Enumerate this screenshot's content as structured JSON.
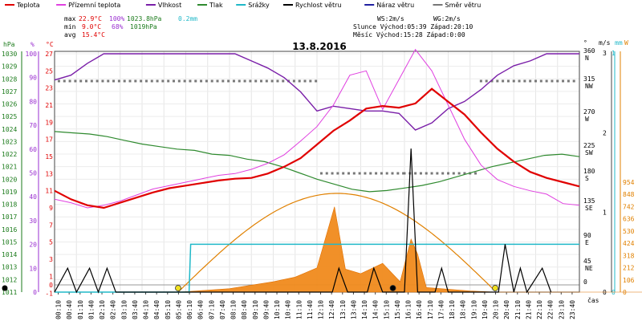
{
  "chart_data": {
    "type": "line",
    "title": "13.8.2016",
    "x_unit": "čas",
    "x_ticks": [
      "00:10",
      "00:40",
      "01:10",
      "01:40",
      "02:10",
      "02:40",
      "03:10",
      "03:40",
      "04:10",
      "04:40",
      "05:10",
      "05:40",
      "06:10",
      "06:40",
      "07:10",
      "07:40",
      "08:10",
      "08:40",
      "09:10",
      "09:40",
      "10:10",
      "10:40",
      "11:10",
      "11:40",
      "12:10",
      "12:40",
      "13:10",
      "13:40",
      "14:10",
      "14:40",
      "15:10",
      "15:40",
      "16:10",
      "16:40",
      "17:10",
      "17:40",
      "18:10",
      "18:40",
      "19:10",
      "19:40",
      "20:10",
      "20:40",
      "21:10",
      "21:40",
      "22:10",
      "22:40",
      "23:10",
      "23:40"
    ],
    "legend": [
      {
        "name": "Teplota",
        "color": "#e00000"
      },
      {
        "name": "Přízemní teplota",
        "color": "#e040e0"
      },
      {
        "name": "Vlhkost",
        "color": "#7a1fa8"
      },
      {
        "name": "Tlak",
        "color": "#2f8a2f"
      },
      {
        "name": "Srážky",
        "color": "#20b8c8"
      },
      {
        "name": "Rychlost větru",
        "color": "#000000"
      },
      {
        "name": "Náraz větru",
        "color": "#2020a0"
      },
      {
        "name": "Směr větru",
        "color": "#777777"
      }
    ],
    "stats": {
      "max_label": "max",
      "max_temp": "22.9°C",
      "max_hum": "100%",
      "max_press": "1023.8hPa",
      "max_rain": "0.2mm",
      "min_label": "min",
      "min_temp": "9.0°C",
      "min_hum": "68%",
      "min_press": "1019hPa",
      "avg_label": "avg",
      "avg_temp": "15.4°C",
      "ws": "WS:2m/s",
      "wg": "WG:2m/s",
      "sun": "Slunce Východ:05:39  Západ:20:10",
      "moon": "Měsíc  Východ:15:28  Západ:0:00"
    },
    "axes": {
      "hpa": {
        "unit": "hPa",
        "color": "#1a7a1a",
        "ticks": [
          1011,
          1012,
          1013,
          1014,
          1015,
          1016,
          1017,
          1018,
          1019,
          1020,
          1021,
          1022,
          1023,
          1024,
          1025,
          1026,
          1027,
          1028,
          1029,
          1030
        ]
      },
      "pct": {
        "unit": "%",
        "color": "#9a2fd0",
        "ticks": [
          0,
          10,
          20,
          30,
          40,
          50,
          60,
          70,
          80,
          90,
          100
        ]
      },
      "degc": {
        "unit": "°C",
        "color": "#e00000",
        "ticks": [
          -1,
          0,
          1,
          3,
          5,
          7,
          9,
          11,
          13,
          15,
          17,
          19,
          21,
          23,
          25,
          27
        ]
      },
      "dir": {
        "unit": "°",
        "ticks": [
          {
            "v": "360",
            "l": "N"
          },
          {
            "v": "315",
            "l": "NW"
          },
          {
            "v": "270",
            "l": "W"
          },
          {
            "v": "225",
            "l": "SW"
          },
          {
            "v": "180",
            "l": "S"
          },
          {
            "v": "135",
            "l": "SE"
          },
          {
            "v": "90",
            "l": "E"
          },
          {
            "v": "45",
            "l": "NE"
          },
          {
            "v": "0",
            "l": ""
          }
        ]
      },
      "ms": {
        "unit": "m/s",
        "ticks": [
          0,
          1,
          2,
          3
        ]
      },
      "mm": {
        "unit": "mm",
        "color": "#20b8c8",
        "ticks": [
          0,
          1
        ]
      },
      "wm2": {
        "unit": "W",
        "color": "#e08000",
        "ticks": [
          0,
          106,
          212,
          318,
          424,
          530,
          636,
          742,
          848,
          954
        ]
      }
    },
    "series": [
      {
        "name": "Teplota",
        "unit": "°C",
        "points": [
          [
            0,
            11
          ],
          [
            1,
            10
          ],
          [
            2,
            9.3
          ],
          [
            3,
            9
          ],
          [
            4,
            9.6
          ],
          [
            5,
            10.2
          ],
          [
            6,
            10.8
          ],
          [
            7,
            11.3
          ],
          [
            8,
            11.6
          ],
          [
            9,
            11.9
          ],
          [
            10,
            12.2
          ],
          [
            11,
            12.4
          ],
          [
            12,
            12.5
          ],
          [
            13,
            13
          ],
          [
            14,
            13.8
          ],
          [
            15,
            14.8
          ],
          [
            16,
            16.4
          ],
          [
            17,
            18
          ],
          [
            18,
            19.2
          ],
          [
            19,
            20.6
          ],
          [
            20,
            20.9
          ],
          [
            21,
            20.7
          ],
          [
            22,
            21.2
          ],
          [
            23,
            22.9
          ],
          [
            24,
            21.4
          ],
          [
            25,
            19.9
          ],
          [
            26,
            17.8
          ],
          [
            27,
            15.9
          ],
          [
            28,
            14.4
          ],
          [
            29,
            13.2
          ],
          [
            30,
            12.5
          ],
          [
            31,
            12
          ],
          [
            32,
            11.5
          ]
        ]
      },
      {
        "name": "Přízemní teplota",
        "unit": "°C",
        "points": [
          [
            0,
            10
          ],
          [
            1,
            9.6
          ],
          [
            2,
            9.0
          ],
          [
            3,
            9.3
          ],
          [
            4,
            9.8
          ],
          [
            5,
            10.5
          ],
          [
            6,
            11.2
          ],
          [
            7,
            11.6
          ],
          [
            8,
            12
          ],
          [
            9,
            12.4
          ],
          [
            10,
            12.8
          ],
          [
            11,
            13
          ],
          [
            12,
            13.5
          ],
          [
            13,
            14.2
          ],
          [
            14,
            15.2
          ],
          [
            15,
            16.8
          ],
          [
            16,
            18.5
          ],
          [
            17,
            21
          ],
          [
            18,
            24.5
          ],
          [
            19,
            25
          ],
          [
            20,
            20.5
          ],
          [
            21,
            24
          ],
          [
            22,
            27.5
          ],
          [
            23,
            25
          ],
          [
            24,
            21
          ],
          [
            25,
            17
          ],
          [
            26,
            14
          ],
          [
            27,
            12.3
          ],
          [
            28,
            11.5
          ],
          [
            29,
            11
          ],
          [
            30,
            10.6
          ],
          [
            31,
            9.5
          ],
          [
            32,
            9.3
          ]
        ]
      },
      {
        "name": "Vlhkost",
        "unit": "%",
        "points": [
          [
            0,
            89
          ],
          [
            1,
            91
          ],
          [
            2,
            96
          ],
          [
            3,
            100
          ],
          [
            4,
            100
          ],
          [
            5,
            100
          ],
          [
            6,
            100
          ],
          [
            7,
            100
          ],
          [
            8,
            100
          ],
          [
            9,
            100
          ],
          [
            10,
            100
          ],
          [
            11,
            100
          ],
          [
            12,
            97
          ],
          [
            13,
            94
          ],
          [
            14,
            90
          ],
          [
            15,
            84
          ],
          [
            16,
            76
          ],
          [
            17,
            78
          ],
          [
            18,
            77
          ],
          [
            19,
            76
          ],
          [
            20,
            76
          ],
          [
            21,
            75
          ],
          [
            22,
            68
          ],
          [
            23,
            71
          ],
          [
            24,
            77
          ],
          [
            25,
            80
          ],
          [
            26,
            85
          ],
          [
            27,
            91
          ],
          [
            28,
            95
          ],
          [
            29,
            97
          ],
          [
            30,
            100
          ],
          [
            31,
            100
          ],
          [
            32,
            100
          ]
        ]
      },
      {
        "name": "Tlak",
        "unit": "hPa",
        "points": [
          [
            0,
            1023.8
          ],
          [
            1,
            1023.7
          ],
          [
            2,
            1023.6
          ],
          [
            3,
            1023.4
          ],
          [
            4,
            1023.1
          ],
          [
            5,
            1022.8
          ],
          [
            6,
            1022.6
          ],
          [
            7,
            1022.4
          ],
          [
            8,
            1022.3
          ],
          [
            9,
            1022.0
          ],
          [
            10,
            1021.9
          ],
          [
            11,
            1021.6
          ],
          [
            12,
            1021.4
          ],
          [
            13,
            1021.0
          ],
          [
            14,
            1020.5
          ],
          [
            15,
            1020.0
          ],
          [
            16,
            1019.6
          ],
          [
            17,
            1019.2
          ],
          [
            18,
            1019.0
          ],
          [
            19,
            1019.1
          ],
          [
            20,
            1019.3
          ],
          [
            21,
            1019.5
          ],
          [
            22,
            1019.8
          ],
          [
            23,
            1020.2
          ],
          [
            24,
            1020.6
          ],
          [
            25,
            1021.0
          ],
          [
            26,
            1021.3
          ],
          [
            27,
            1021.6
          ],
          [
            28,
            1021.9
          ],
          [
            29,
            1022.0
          ],
          [
            30,
            1021.8
          ]
        ]
      },
      {
        "name": "Srážky",
        "unit": "mm",
        "points": [
          [
            0,
            0
          ],
          [
            8.2,
            0
          ],
          [
            8.3,
            0.2
          ],
          [
            32,
            0.2
          ]
        ]
      },
      {
        "name": "Sluneční záření",
        "unit": "W/m2",
        "points": [
          [
            0,
            0
          ],
          [
            5.7,
            0
          ],
          [
            8,
            30
          ],
          [
            10,
            90
          ],
          [
            11,
            130
          ],
          [
            12,
            210
          ],
          [
            12.8,
            740
          ],
          [
            13.3,
            200
          ],
          [
            14,
            160
          ],
          [
            15,
            250
          ],
          [
            15.8,
            90
          ],
          [
            16.3,
            460
          ],
          [
            16.6,
            330
          ],
          [
            17,
            40
          ],
          [
            18,
            25
          ],
          [
            19,
            10
          ],
          [
            20.2,
            0
          ],
          [
            32,
            0
          ]
        ]
      },
      {
        "name": "Rychlost větru",
        "unit": "m/s",
        "points": [
          [
            0,
            0
          ],
          [
            0.6,
            0.3
          ],
          [
            1,
            0
          ],
          [
            1.6,
            0.3
          ],
          [
            2,
            0
          ],
          [
            2.4,
            0.3
          ],
          [
            2.8,
            0
          ],
          [
            12.7,
            0
          ],
          [
            13,
            0.3
          ],
          [
            13.4,
            0
          ],
          [
            14.3,
            0
          ],
          [
            14.6,
            0.3
          ],
          [
            15,
            0
          ],
          [
            16,
            0
          ],
          [
            16.3,
            1.8
          ],
          [
            16.6,
            0
          ],
          [
            17.4,
            0
          ],
          [
            17.7,
            0.3
          ],
          [
            18,
            0
          ],
          [
            20.3,
            0
          ],
          [
            20.6,
            0.6
          ],
          [
            21,
            0
          ],
          [
            21.3,
            0.3
          ],
          [
            21.6,
            0
          ],
          [
            22.3,
            0.3
          ],
          [
            22.7,
            0
          ]
        ]
      }
    ],
    "markers": [
      {
        "label": "sunrise",
        "color": "#f0e020",
        "x": 5.65
      },
      {
        "label": "sunset",
        "color": "#f0e020",
        "x": 20.15
      },
      {
        "label": "moonrise",
        "color": "#000000",
        "x": 15.47
      }
    ]
  }
}
